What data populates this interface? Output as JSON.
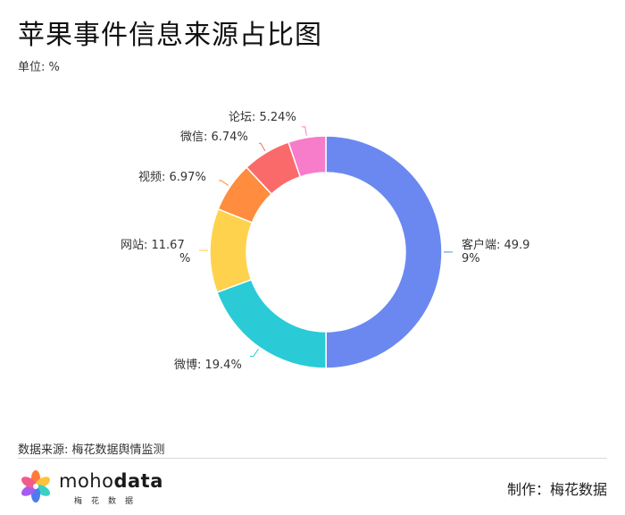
{
  "header": {
    "title": "苹果事件信息来源占比图",
    "unit": "单位: %"
  },
  "footer": {
    "source": "数据来源: 梅花数据舆情监测",
    "brand_prefix": "moho",
    "brand_suffix": "data",
    "brand_sub": "梅花数据",
    "credit": "制作：梅花数据"
  },
  "chart_data": {
    "type": "pie",
    "donut": true,
    "start_angle_deg": 0,
    "direction": "clockwise",
    "slices": [
      {
        "name": "客户端",
        "value": 49.99,
        "label_lines": [
          "客户端: 49.9",
          "9%"
        ],
        "color": "#6b88f0"
      },
      {
        "name": "微博",
        "value": 19.4,
        "label_lines": [
          "微博: 19.4%"
        ],
        "color": "#2acbd6"
      },
      {
        "name": "网站",
        "value": 11.67,
        "label_lines": [
          "网站: 11.67",
          "%"
        ],
        "color": "#ffd24d"
      },
      {
        "name": "视频",
        "value": 6.97,
        "label_lines": [
          "视频: 6.97%"
        ],
        "color": "#ff8c3f"
      },
      {
        "name": "微信",
        "value": 6.74,
        "label_lines": [
          "微信: 6.74%"
        ],
        "color": "#fa6a6a"
      },
      {
        "name": "论坛",
        "value": 5.24,
        "label_lines": [
          "论坛: 5.24%"
        ],
        "color": "#f77cc9"
      }
    ]
  }
}
